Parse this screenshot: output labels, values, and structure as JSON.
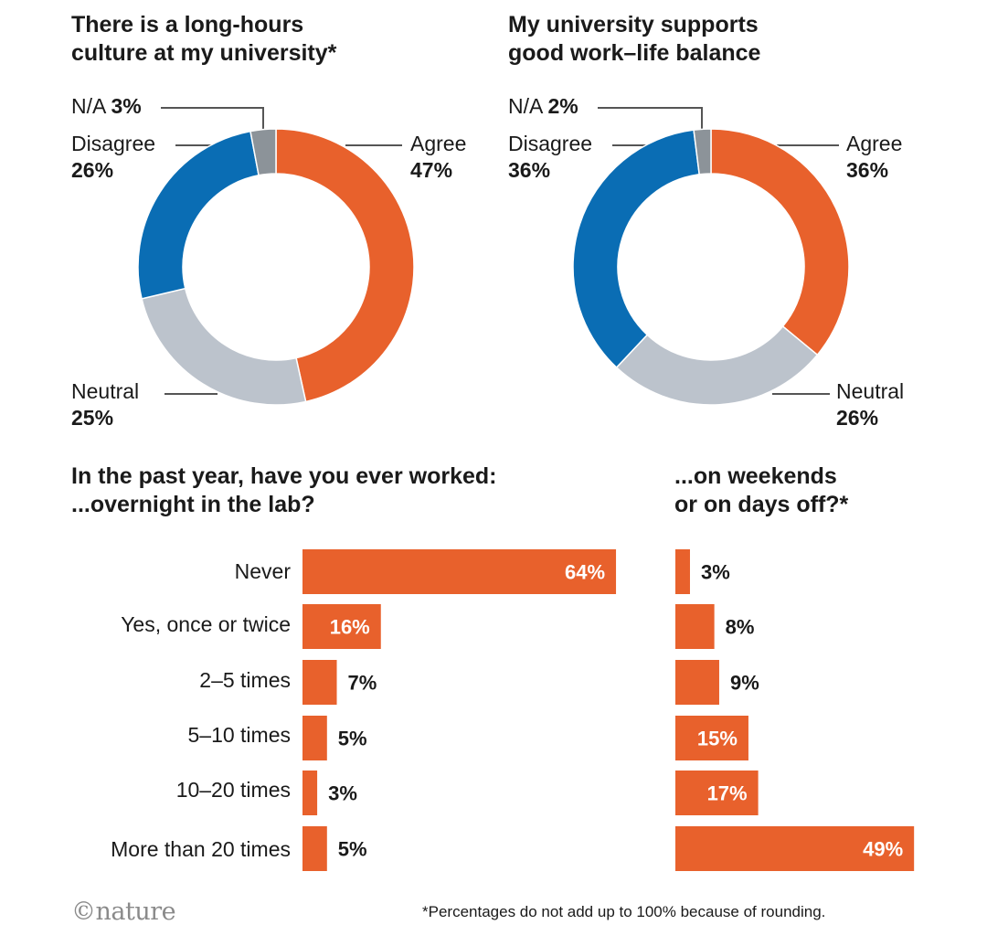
{
  "chart_data": [
    {
      "type": "pie",
      "title": "There is a long-hours culture at my university*",
      "slices": [
        {
          "label": "Agree",
          "value": 47,
          "color": "#e8612c"
        },
        {
          "label": "Neutral",
          "value": 25,
          "color": "#bcc3cc"
        },
        {
          "label": "Disagree",
          "value": 26,
          "color": "#0a6db4"
        },
        {
          "label": "N/A",
          "value": 3,
          "color": "#8c9399"
        }
      ]
    },
    {
      "type": "pie",
      "title": "My university supports good work–life balance",
      "slices": [
        {
          "label": "Agree",
          "value": 36,
          "color": "#e8612c"
        },
        {
          "label": "Neutral",
          "value": 26,
          "color": "#bcc3cc"
        },
        {
          "label": "Disagree",
          "value": 36,
          "color": "#0a6db4"
        },
        {
          "label": "N/A",
          "value": 2,
          "color": "#8c9399"
        }
      ]
    },
    {
      "type": "bar",
      "orientation": "horizontal",
      "title": "In the past year, have you ever worked:",
      "subtitle": "...overnight in the lab?",
      "categories": [
        "Never",
        "Yes, once or twice",
        "2–5 times",
        "5–10 times",
        "10–20 times",
        "More than 20 times"
      ],
      "values": [
        64,
        16,
        7,
        5,
        3,
        5
      ],
      "color": "#e8612c"
    },
    {
      "type": "bar",
      "orientation": "horizontal",
      "title": "...on weekends or on days off?*",
      "categories": [
        "Never",
        "Yes, once or twice",
        "2–5 times",
        "5–10 times",
        "10–20 times",
        "More than 20 times"
      ],
      "values": [
        3,
        8,
        9,
        15,
        17,
        49
      ],
      "color": "#e8612c"
    }
  ],
  "titles": {
    "donut1_line1": "There is a long-hours",
    "donut1_line2": "culture at my university*",
    "donut2_line1": "My university supports",
    "donut2_line2": "good work–life balance",
    "bars1_line1": "In the past year, have you ever worked:",
    "bars1_line2": "...overnight in the lab?",
    "bars2_line1": "...on weekends",
    "bars2_line2": "or on days off?*"
  },
  "donut_labels": {
    "d1": {
      "na": "N/A",
      "na_pct": "3%",
      "disagree": "Disagree",
      "disagree_pct": "26%",
      "agree": "Agree",
      "agree_pct": "47%",
      "neutral": "Neutral",
      "neutral_pct": "25%"
    },
    "d2": {
      "na": "N/A",
      "na_pct": "2%",
      "disagree": "Disagree",
      "disagree_pct": "36%",
      "agree": "Agree",
      "agree_pct": "36%",
      "neutral": "Neutral",
      "neutral_pct": "26%"
    }
  },
  "footnote": "*Percentages do not add up to 100% because of rounding.",
  "logo": "©nature"
}
